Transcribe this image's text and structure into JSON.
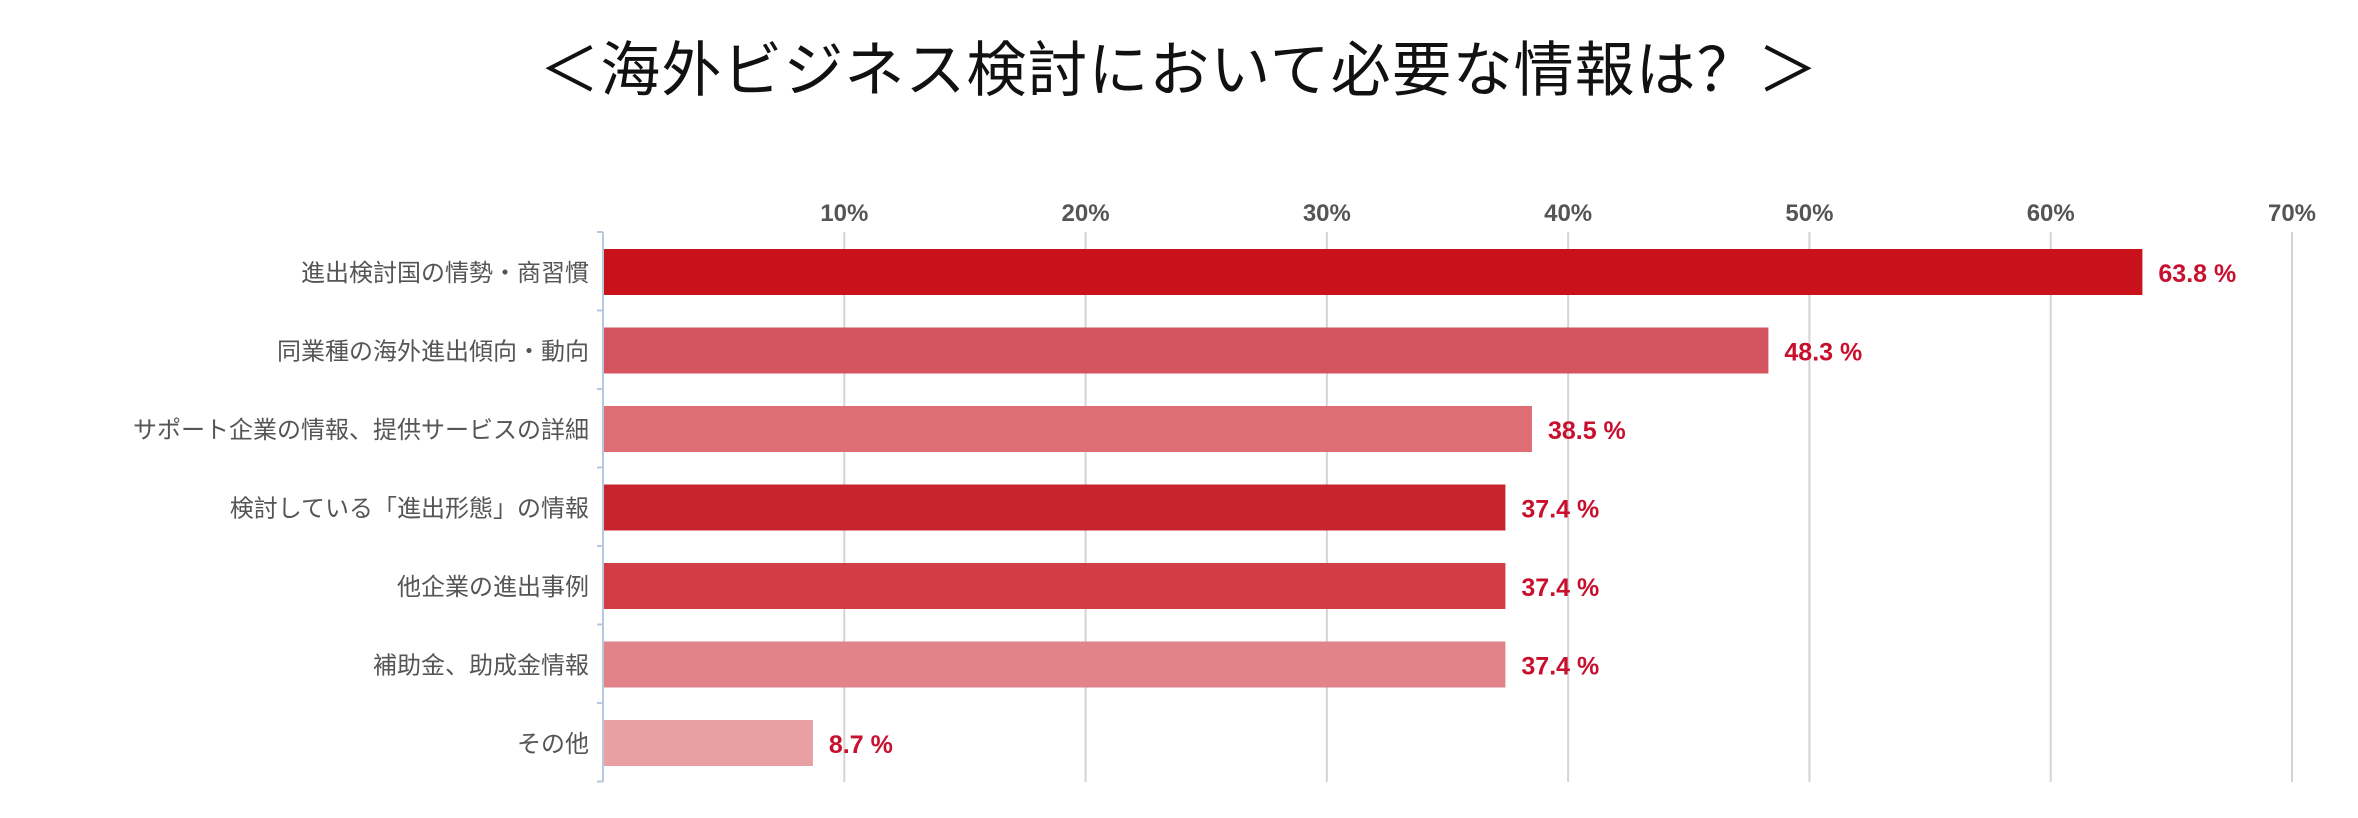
{
  "title": "＜海外ビジネス検討において必要な情報は？＞",
  "chart_data": {
    "type": "bar",
    "orientation": "horizontal",
    "categories": [
      "進出検討国の情勢・商習慣",
      "同業種の海外進出傾向・動向",
      "サポート企業の情報、提供サービスの詳細",
      "検討している「進出形態」の情報",
      "他企業の進出事例",
      "補助金、助成金情報",
      "その他"
    ],
    "values": [
      63.8,
      48.3,
      38.5,
      37.4,
      37.4,
      37.4,
      8.7
    ],
    "value_labels": [
      "63.8 %",
      "48.3 %",
      "38.5 %",
      "37.4 %",
      "37.4 %",
      "37.4 %",
      "8.7 %"
    ],
    "bar_colors": [
      "#c8111a",
      "#d45560",
      "#df6e74",
      "#c8242f",
      "#d23c45",
      "#e18389",
      "#e8a0a3"
    ],
    "xlim": [
      0,
      70
    ],
    "xticks": [
      10,
      20,
      30,
      40,
      50,
      60,
      70
    ],
    "xtick_labels": [
      "10%",
      "20%",
      "30%",
      "40%",
      "50%",
      "60%",
      "70%"
    ],
    "x_axis_position": "top",
    "grid": true,
    "legend": "none",
    "xlabel": "",
    "ylabel": ""
  }
}
